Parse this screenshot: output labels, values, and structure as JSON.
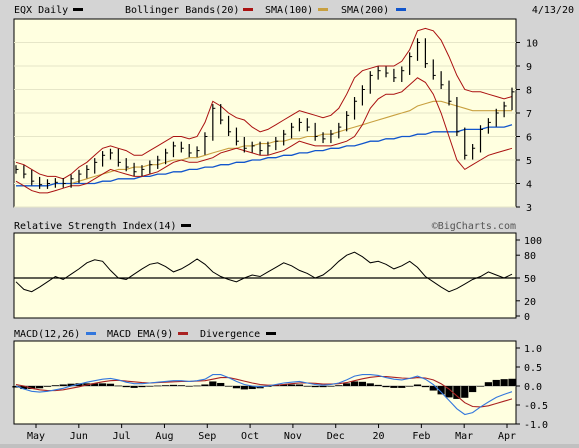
{
  "header": {
    "symbol_label": "EQX Daily",
    "bollinger_label": "Bollinger Bands(20)",
    "sma100_label": "SMA(100)",
    "sma200_label": "SMA(200)",
    "date": "4/13/20"
  },
  "rsi_panel": {
    "title": "Relative Strength Index(14)",
    "watermark": "©BigCharts.com"
  },
  "macd_panel": {
    "macd_label": "MACD(12,26)",
    "ema_label": "MACD EMA(9)",
    "divergence_label": "Divergence"
  },
  "colors": {
    "plot_bg": "#ffffe0",
    "bollinger": "#aa1111",
    "sma100": "#c8a040",
    "sma200": "#1155cc",
    "price": "#000000",
    "macd_line": "#3377dd",
    "macd_ema": "#aa2222",
    "divergence": "#000000"
  },
  "chart_data": [
    {
      "type": "ohlc",
      "x_labels": [
        "May",
        "Jun",
        "Jul",
        "Aug",
        "Sep",
        "Oct",
        "Nov",
        "Dec",
        "20",
        "Feb",
        "Mar",
        "Apr"
      ],
      "y_ticks": [
        3,
        4,
        5,
        6,
        7,
        8,
        9,
        10
      ],
      "ylim": [
        3,
        11
      ],
      "close": [
        4.6,
        4.4,
        4.1,
        3.95,
        4.0,
        4.05,
        4.0,
        4.2,
        4.4,
        4.6,
        4.9,
        5.2,
        5.3,
        4.9,
        4.7,
        4.5,
        4.6,
        4.8,
        5.0,
        5.3,
        5.6,
        5.5,
        5.3,
        5.4,
        6.0,
        7.2,
        6.7,
        6.2,
        5.8,
        5.5,
        5.6,
        5.4,
        5.6,
        5.8,
        6.1,
        6.4,
        6.6,
        6.4,
        6.0,
        5.9,
        6.1,
        6.4,
        6.9,
        7.5,
        8.0,
        8.6,
        8.8,
        8.7,
        8.5,
        8.8,
        9.4,
        10.0,
        9.1,
        8.6,
        8.2,
        7.5,
        6.2,
        5.2,
        5.5,
        6.3,
        6.6,
        7.0,
        7.3,
        7.9
      ],
      "bollinger_upper": [
        4.9,
        4.8,
        4.6,
        4.4,
        4.3,
        4.3,
        4.2,
        4.4,
        4.7,
        4.9,
        5.2,
        5.5,
        5.6,
        5.5,
        5.4,
        5.2,
        5.2,
        5.4,
        5.6,
        5.8,
        6.0,
        6.0,
        5.9,
        6.0,
        6.6,
        7.5,
        7.3,
        7.0,
        6.8,
        6.7,
        6.4,
        6.2,
        6.3,
        6.5,
        6.7,
        6.9,
        7.1,
        7.0,
        6.9,
        6.8,
        6.9,
        7.2,
        7.8,
        8.5,
        8.8,
        8.9,
        9.0,
        9.0,
        9.0,
        9.2,
        9.7,
        10.5,
        10.6,
        10.5,
        10.1,
        9.4,
        8.6,
        8.0,
        7.9,
        7.9,
        7.8,
        7.7,
        7.6,
        7.7
      ],
      "bollinger_lower": [
        4.1,
        3.9,
        3.7,
        3.6,
        3.6,
        3.7,
        3.8,
        3.9,
        3.9,
        4.0,
        4.2,
        4.4,
        4.6,
        4.5,
        4.4,
        4.3,
        4.3,
        4.4,
        4.5,
        4.7,
        4.9,
        5.0,
        4.9,
        4.9,
        5.0,
        5.1,
        5.3,
        5.4,
        5.5,
        5.4,
        5.3,
        5.2,
        5.2,
        5.3,
        5.4,
        5.6,
        5.8,
        5.7,
        5.6,
        5.6,
        5.6,
        5.7,
        5.8,
        6.0,
        6.5,
        7.2,
        7.6,
        7.8,
        7.8,
        7.9,
        8.2,
        8.5,
        8.3,
        7.8,
        7.0,
        6.0,
        5.0,
        4.6,
        4.8,
        5.0,
        5.2,
        5.3,
        5.4,
        5.5
      ],
      "sma100": [
        null,
        null,
        null,
        null,
        null,
        null,
        null,
        4.0,
        4.1,
        4.2,
        4.3,
        4.4,
        4.5,
        4.6,
        4.6,
        4.7,
        4.7,
        4.8,
        4.8,
        4.9,
        5.0,
        5.0,
        5.1,
        5.1,
        5.2,
        5.3,
        5.4,
        5.5,
        5.5,
        5.6,
        5.6,
        5.7,
        5.7,
        5.8,
        5.8,
        5.9,
        5.9,
        6.0,
        6.0,
        6.1,
        6.1,
        6.2,
        6.3,
        6.4,
        6.5,
        6.6,
        6.7,
        6.8,
        6.9,
        7.0,
        7.1,
        7.3,
        7.4,
        7.5,
        7.5,
        7.4,
        7.3,
        7.2,
        7.1,
        7.1,
        7.1,
        7.1,
        7.1,
        7.1
      ],
      "sma200": [
        3.9,
        3.9,
        3.9,
        3.9,
        3.9,
        4.0,
        4.0,
        4.0,
        4.0,
        4.0,
        4.0,
        4.1,
        4.1,
        4.2,
        4.2,
        4.2,
        4.3,
        4.3,
        4.4,
        4.4,
        4.5,
        4.5,
        4.6,
        4.6,
        4.7,
        4.7,
        4.8,
        4.8,
        4.9,
        4.9,
        5.0,
        5.0,
        5.1,
        5.1,
        5.2,
        5.2,
        5.3,
        5.3,
        5.4,
        5.4,
        5.5,
        5.5,
        5.6,
        5.6,
        5.7,
        5.8,
        5.8,
        5.9,
        5.9,
        6.0,
        6.0,
        6.1,
        6.1,
        6.2,
        6.2,
        6.2,
        6.2,
        6.3,
        6.3,
        6.3,
        6.4,
        6.4,
        6.4,
        6.5
      ]
    },
    {
      "type": "line",
      "title": "Relative Strength Index(14)",
      "y_ticks": [
        0,
        20,
        50,
        80,
        100
      ],
      "ylim": [
        0,
        100
      ],
      "reference_line": 50,
      "values": [
        45,
        35,
        32,
        38,
        45,
        52,
        48,
        55,
        62,
        70,
        74,
        72,
        60,
        50,
        48,
        55,
        62,
        68,
        70,
        65,
        58,
        62,
        68,
        75,
        68,
        58,
        52,
        48,
        45,
        50,
        54,
        52,
        58,
        64,
        70,
        66,
        60,
        56,
        50,
        54,
        62,
        72,
        80,
        84,
        78,
        70,
        72,
        68,
        62,
        66,
        72,
        64,
        52,
        45,
        38,
        32,
        36,
        42,
        48,
        52,
        58,
        54,
        50,
        55
      ]
    },
    {
      "type": "line",
      "title": "MACD(12,26)",
      "y_ticks": [
        -1.0,
        -0.5,
        0.0,
        0.5,
        1.0
      ],
      "ylim": [
        -1.0,
        1.0
      ],
      "series": [
        {
          "name": "MACD(12,26)",
          "values": [
            0.0,
            -0.08,
            -0.14,
            -0.16,
            -0.14,
            -0.1,
            -0.06,
            0.0,
            0.05,
            0.1,
            0.14,
            0.18,
            0.2,
            0.16,
            0.1,
            0.06,
            0.06,
            0.08,
            0.1,
            0.12,
            0.14,
            0.14,
            0.12,
            0.14,
            0.18,
            0.3,
            0.3,
            0.22,
            0.12,
            0.04,
            0.0,
            -0.02,
            0.0,
            0.04,
            0.08,
            0.1,
            0.12,
            0.08,
            0.04,
            0.02,
            0.04,
            0.08,
            0.16,
            0.26,
            0.3,
            0.3,
            0.28,
            0.22,
            0.18,
            0.16,
            0.2,
            0.26,
            0.18,
            0.04,
            -0.16,
            -0.38,
            -0.6,
            -0.75,
            -0.7,
            -0.55,
            -0.42,
            -0.3,
            -0.22,
            -0.15
          ]
        },
        {
          "name": "MACD EMA(9)",
          "values": [
            0.04,
            0.0,
            -0.06,
            -0.1,
            -0.12,
            -0.12,
            -0.1,
            -0.06,
            -0.02,
            0.03,
            0.07,
            0.11,
            0.14,
            0.15,
            0.13,
            0.11,
            0.09,
            0.08,
            0.09,
            0.1,
            0.11,
            0.12,
            0.12,
            0.13,
            0.14,
            0.18,
            0.22,
            0.22,
            0.18,
            0.13,
            0.08,
            0.04,
            0.02,
            0.02,
            0.04,
            0.06,
            0.08,
            0.08,
            0.07,
            0.05,
            0.05,
            0.06,
            0.09,
            0.14,
            0.19,
            0.23,
            0.25,
            0.25,
            0.23,
            0.21,
            0.2,
            0.22,
            0.21,
            0.16,
            0.06,
            -0.08,
            -0.26,
            -0.44,
            -0.54,
            -0.55,
            -0.52,
            -0.46,
            -0.4,
            -0.34
          ]
        }
      ]
    }
  ]
}
